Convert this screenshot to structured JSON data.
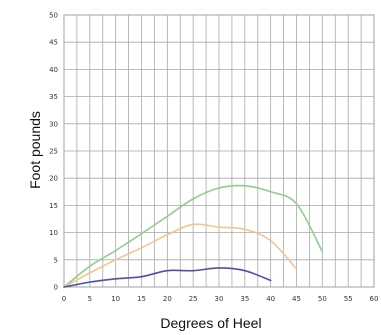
{
  "chart_data": {
    "type": "line",
    "title": "",
    "xlabel": "Degrees of Heel",
    "ylabel": "Foot pounds",
    "xlim": [
      0,
      60
    ],
    "ylim": [
      0,
      50
    ],
    "x_ticks": [
      0,
      5,
      10,
      15,
      20,
      25,
      30,
      35,
      40,
      45,
      50,
      55,
      60
    ],
    "y_ticks": [
      0,
      5,
      10,
      15,
      20,
      25,
      30,
      35,
      40,
      45,
      50
    ],
    "grid": true,
    "legend": "none",
    "series": [
      {
        "color": "#8fcf8b",
        "x": [
          0,
          5,
          10,
          15,
          20,
          25,
          30,
          35,
          40,
          45,
          50
        ],
        "y": [
          0,
          3.8,
          6.7,
          9.8,
          13,
          16.2,
          18.2,
          18.6,
          17.5,
          15.3,
          6.5
        ]
      },
      {
        "color": "#f5c58f",
        "x": [
          0,
          5,
          10,
          15,
          20,
          25,
          30,
          35,
          40,
          45
        ],
        "y": [
          0,
          2.6,
          5,
          7.2,
          9.6,
          11.5,
          11,
          10.6,
          8.5,
          3.3
        ]
      },
      {
        "color": "#4c52a3",
        "x": [
          0,
          5,
          10,
          15,
          20,
          25,
          30,
          35,
          40
        ],
        "y": [
          0,
          0.9,
          1.5,
          1.9,
          3,
          3,
          3.5,
          3,
          1.2
        ]
      }
    ]
  }
}
